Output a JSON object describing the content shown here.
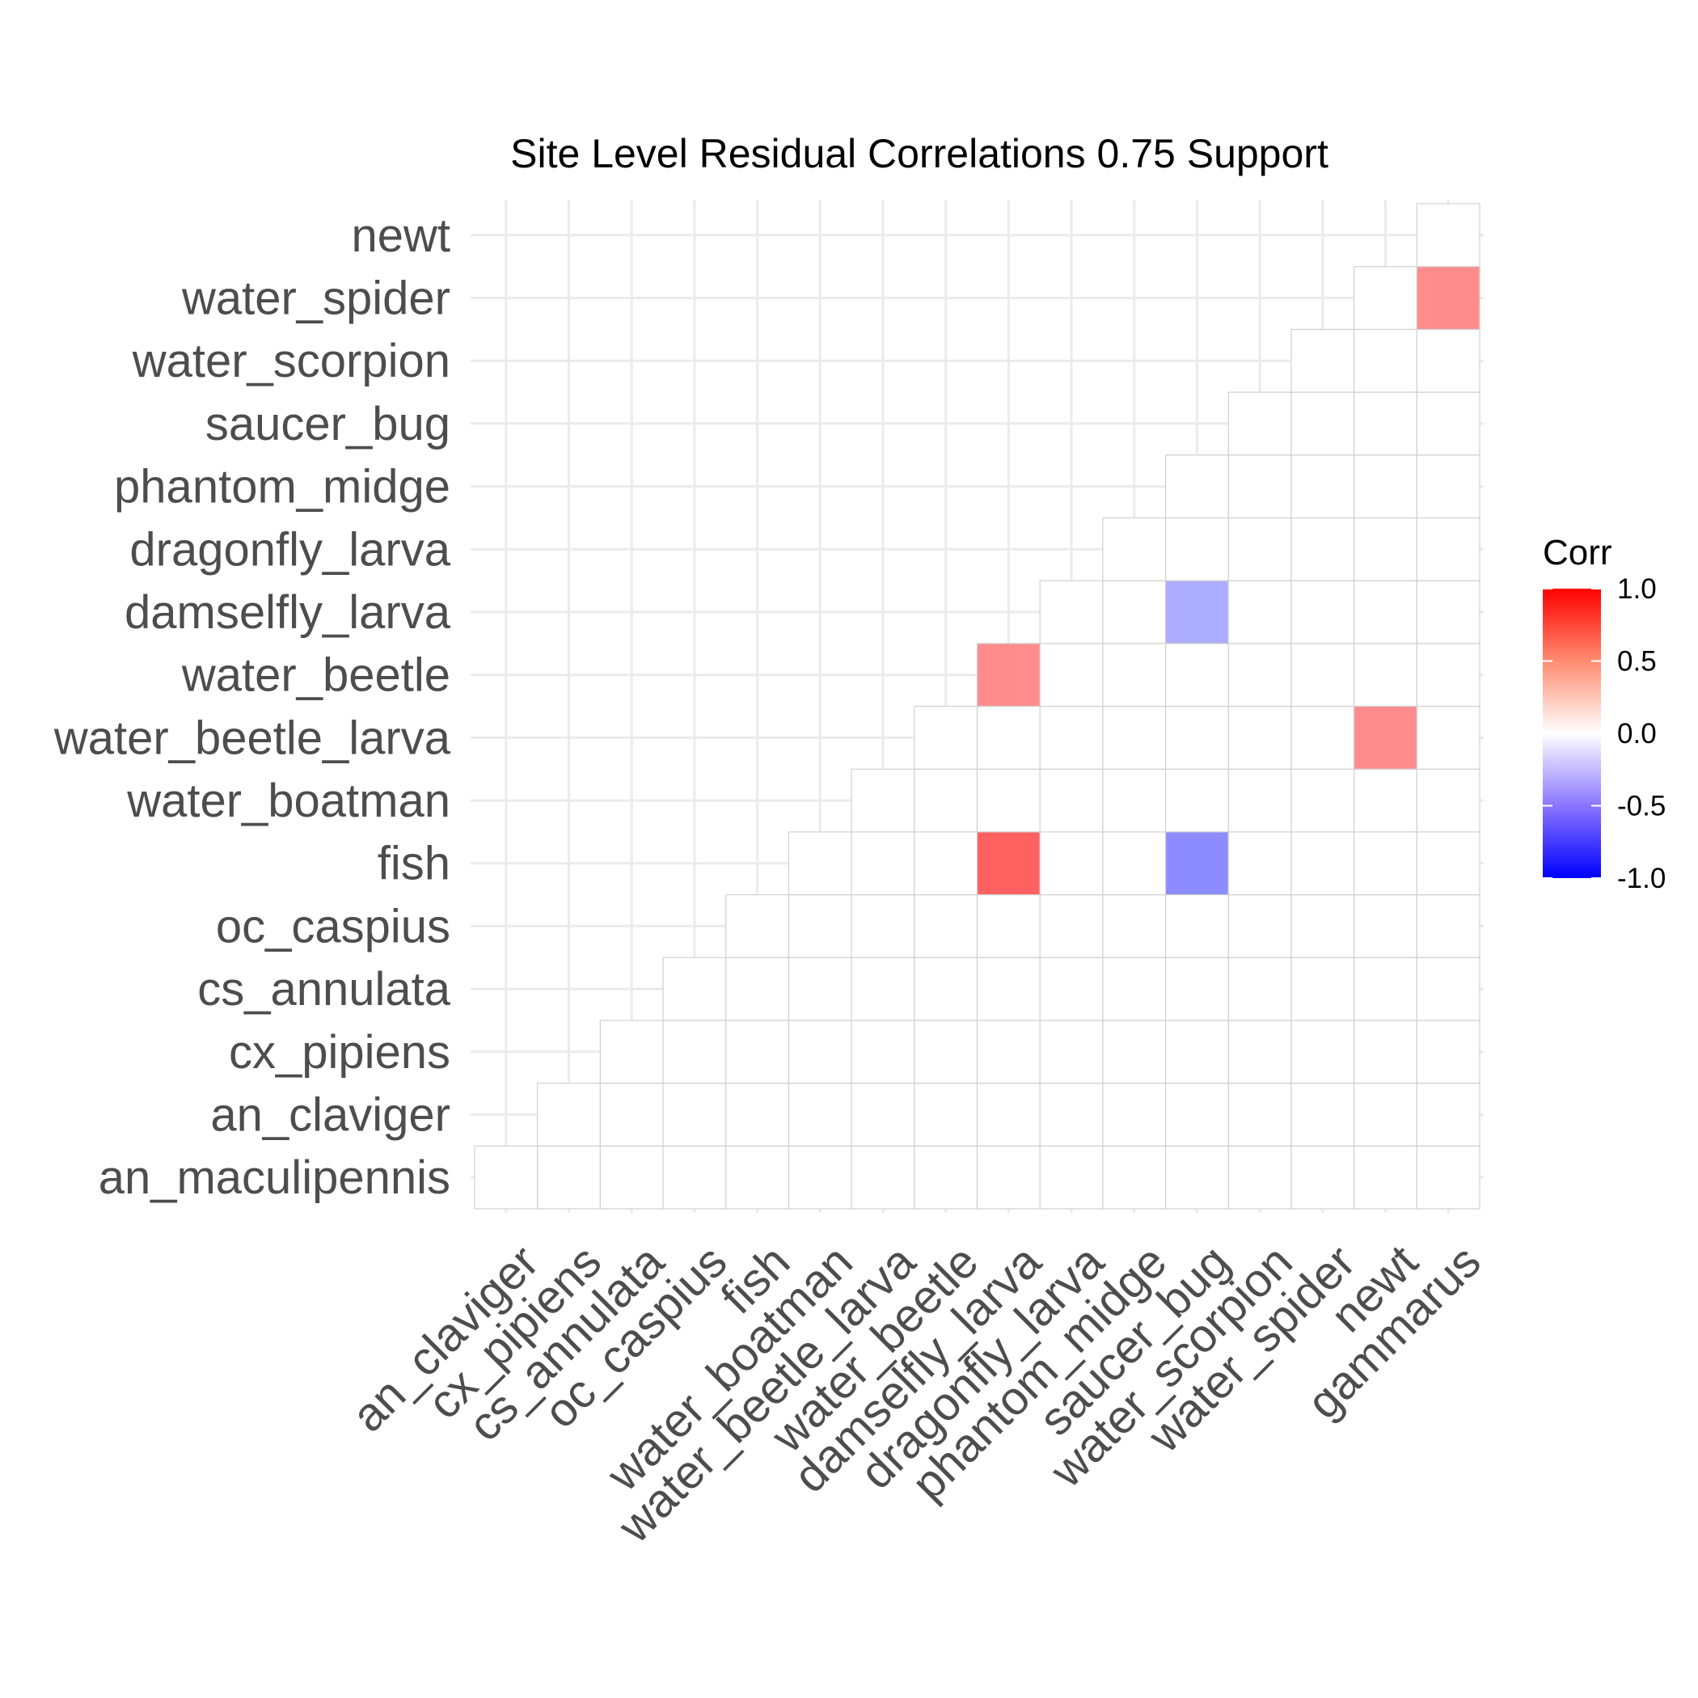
{
  "chart_data": {
    "type": "heatmap",
    "title": "Site Level Residual Correlations 0.75 Support",
    "x_categories": [
      "an_claviger",
      "cx_pipiens",
      "cs_annulata",
      "oc_caspius",
      "fish",
      "water_boatman",
      "water_beetle_larva",
      "water_beetle",
      "damselfly_larva",
      "dragonfly_larva",
      "phantom_midge",
      "saucer_bug",
      "water_scorpion",
      "water_spider",
      "newt",
      "gammarus"
    ],
    "y_categories": [
      "an_maculipennis",
      "an_claviger",
      "cx_pipiens",
      "cs_annulata",
      "oc_caspius",
      "fish",
      "water_boatman",
      "water_beetle_larva",
      "water_beetle",
      "damselfly_larva",
      "dragonfly_larva",
      "phantom_midge",
      "saucer_bug",
      "water_scorpion",
      "water_spider",
      "newt"
    ],
    "shape": "lower-triangle",
    "nonzero_cells": [
      {
        "x": "damselfly_larva",
        "y": "fish",
        "value": 0.62
      },
      {
        "x": "saucer_bug",
        "y": "fish",
        "value": -0.45
      },
      {
        "x": "damselfly_larva",
        "y": "water_beetle",
        "value": 0.45
      },
      {
        "x": "newt",
        "y": "water_beetle_larva",
        "value": 0.45
      },
      {
        "x": "saucer_bug",
        "y": "damselfly_larva",
        "value": -0.32
      },
      {
        "x": "gammarus",
        "y": "water_spider",
        "value": 0.45
      }
    ],
    "other_cells_value": 0.0,
    "legend": {
      "title": "Corr",
      "ticks": [
        "1.0",
        "0.5",
        "0.0",
        "-0.5",
        "-1.0"
      ],
      "range": [
        -1.0,
        1.0
      ],
      "colors": {
        "low": "#0000ff",
        "mid": "#ffffff",
        "high": "#ff0000"
      },
      "placement": "right"
    },
    "grid": true
  }
}
